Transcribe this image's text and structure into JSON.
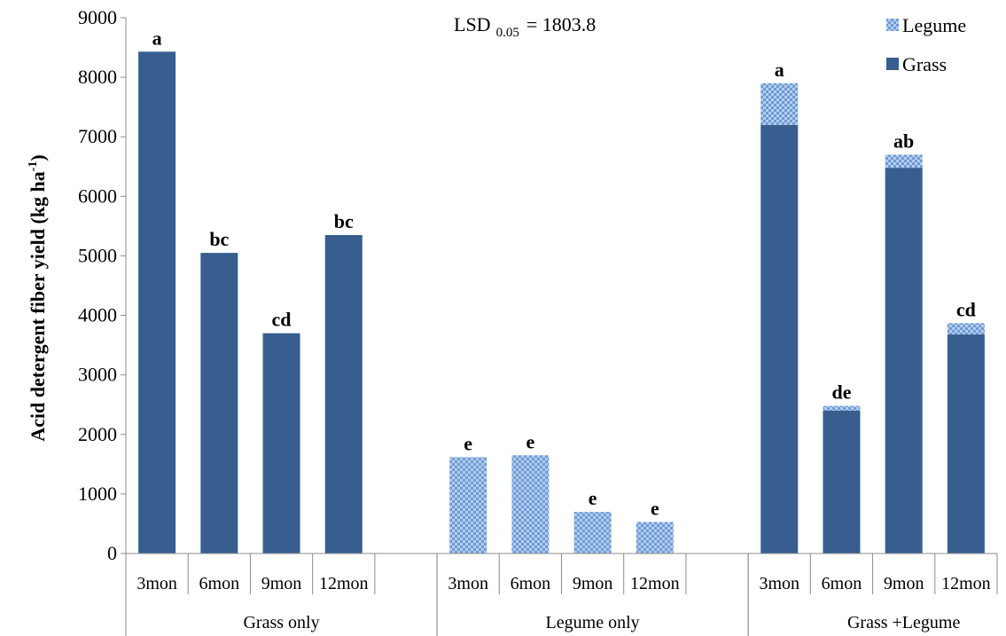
{
  "chart_data": {
    "type": "bar",
    "stacked": true,
    "ylabel_main": "Acid detergent fiber yield (kg  ha",
    "ylabel_sup": "-1",
    "ylabel_close": ")",
    "ylim": [
      0,
      9000
    ],
    "yticks": [
      0,
      1000,
      2000,
      3000,
      4000,
      5000,
      6000,
      7000,
      8000,
      9000
    ],
    "annotation_main": "LSD",
    "annotation_sub": "0.05",
    "annotation_value": "=  1803.8",
    "legend_position": "top-right",
    "legend": [
      {
        "name": "Legume",
        "pattern": "checker"
      },
      {
        "name": "Grass",
        "pattern": "solid"
      }
    ],
    "colors": {
      "grass": "#375e8f",
      "legume_light": "#b3cdee",
      "legume_dark": "#6e9bd4"
    },
    "groups": [
      {
        "label": "Grass only",
        "bars": [
          {
            "category": "3mon",
            "grass": 8430,
            "legume": 0,
            "sig": "a"
          },
          {
            "category": "6mon",
            "grass": 5050,
            "legume": 0,
            "sig": "bc"
          },
          {
            "category": "9mon",
            "grass": 3700,
            "legume": 0,
            "sig": "cd"
          },
          {
            "category": "12mon",
            "grass": 5350,
            "legume": 0,
            "sig": "bc"
          }
        ]
      },
      {
        "label": "Legume only",
        "bars": [
          {
            "category": "3mon",
            "grass": 0,
            "legume": 1620,
            "sig": "e"
          },
          {
            "category": "6mon",
            "grass": 0,
            "legume": 1650,
            "sig": "e"
          },
          {
            "category": "9mon",
            "grass": 0,
            "legume": 700,
            "sig": "e"
          },
          {
            "category": "12mon",
            "grass": 0,
            "legume": 530,
            "sig": "e"
          }
        ]
      },
      {
        "label": "Grass +Legume",
        "bars": [
          {
            "category": "3mon",
            "grass": 7200,
            "legume": 700,
            "sig": "a"
          },
          {
            "category": "6mon",
            "grass": 2400,
            "legume": 80,
            "sig": "de"
          },
          {
            "category": "9mon",
            "grass": 6480,
            "legume": 220,
            "sig": "ab"
          },
          {
            "category": "12mon",
            "grass": 3680,
            "legume": 190,
            "sig": "cd"
          }
        ]
      }
    ]
  }
}
